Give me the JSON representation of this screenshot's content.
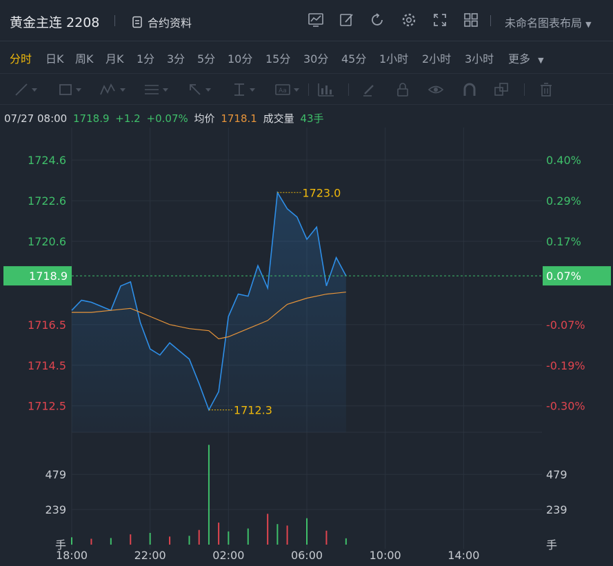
{
  "header": {
    "symbol": "黄金主连 2208",
    "contract_info": "合约资料",
    "layout_name": "未命名图表布局",
    "icons": [
      "chart-type-icon",
      "edit-icon",
      "refresh-icon",
      "settings-icon",
      "fullscreen-icon",
      "grid-layout-icon"
    ]
  },
  "periods": [
    "分时",
    "日K",
    "周K",
    "月K",
    "1分",
    "3分",
    "5分",
    "10分",
    "15分",
    "30分",
    "45分",
    "1小时",
    "2小时",
    "3小时",
    "更多"
  ],
  "active_period": "分时",
  "drawing_tools": [
    "trend-line-icon",
    "rectangle-icon",
    "pattern-icon",
    "fib-icon",
    "arrow-icon",
    "measure-icon",
    "text-icon",
    "indicator-icon",
    "brush-icon",
    "lock-icon",
    "eye-icon",
    "magnet-icon",
    "clone-icon",
    "trash-icon"
  ],
  "quote": {
    "datetime": "07/27 08:00",
    "price": "1718.9",
    "change": "+1.2",
    "change_pct": "+0.07%",
    "avg_label": "均价",
    "avg_price": "1718.1",
    "vol_label": "成交量",
    "volume": "43手"
  },
  "colors": {
    "up": "#3fbf6a",
    "down": "#e0454f",
    "price_line": "#2e8fe8",
    "avg_line": "#e8953a",
    "marker": "#f0b90b",
    "current_price_bg": "#3fbf6a",
    "grid": "#2b333e"
  },
  "chart_data": [
    {
      "type": "line",
      "title": "",
      "x_ticks": [
        "18:00",
        "22:00",
        "02:00",
        "06:00",
        "10:00",
        "14:00"
      ],
      "y_ticks_left": [
        "1724.6",
        "1722.6",
        "1720.6",
        "1716.5",
        "1714.5",
        "1712.5"
      ],
      "y_ticks_right": [
        "0.40%",
        "0.29%",
        "0.17%",
        "-0.07%",
        "-0.19%",
        "-0.30%"
      ],
      "ylim": [
        1711.2,
        1726.2
      ],
      "current_price": "1718.9",
      "current_pct": "0.07%",
      "high_label": "1723.0",
      "low_label": "1712.3",
      "series": [
        {
          "x": [
            "18:00",
            "18:30",
            "19:00",
            "19:30",
            "20:00",
            "20:30",
            "21:00",
            "21:30",
            "22:00",
            "22:30",
            "23:00",
            "23:30",
            "00:00",
            "00:30",
            "01:00",
            "01:30",
            "02:00",
            "02:30",
            "03:00",
            "03:30",
            "04:00",
            "04:30",
            "05:00",
            "05:30",
            "06:00",
            "06:30",
            "07:00",
            "07:30",
            "08:00"
          ],
          "values": [
            1717.2,
            1717.7,
            1717.6,
            1717.4,
            1717.2,
            1718.4,
            1718.6,
            1716.6,
            1715.3,
            1715.0,
            1715.6,
            1715.2,
            1714.8,
            1713.6,
            1712.3,
            1713.2,
            1716.9,
            1718.0,
            1717.9,
            1719.4,
            1718.3,
            1723.0,
            1722.2,
            1721.8,
            1720.7,
            1721.3,
            1718.4,
            1719.8,
            1718.9
          ]
        },
        {
          "x": [
            "18:00",
            "19:00",
            "20:00",
            "21:00",
            "21:30",
            "22:00",
            "23:00",
            "00:00",
            "01:00",
            "01:30",
            "02:00",
            "03:00",
            "04:00",
            "04:30",
            "05:00",
            "06:00",
            "07:00",
            "07:30",
            "08:00"
          ],
          "values": [
            1717.1,
            1717.1,
            1717.2,
            1717.3,
            1717.1,
            1716.9,
            1716.5,
            1716.3,
            1716.2,
            1715.8,
            1715.9,
            1716.3,
            1716.7,
            1717.1,
            1717.5,
            1717.8,
            1718.0,
            1718.05,
            1718.1
          ]
        }
      ]
    },
    {
      "type": "bar",
      "title": "",
      "y_ticks_left": [
        "479",
        "239",
        "手"
      ],
      "y_ticks_right": [
        "479",
        "239",
        "手"
      ],
      "ylim": [
        0,
        719
      ],
      "x": [
        "18:00",
        "19:00",
        "20:00",
        "21:00",
        "22:00",
        "23:00",
        "00:00",
        "00:30",
        "01:00",
        "01:30",
        "02:00",
        "03:00",
        "04:00",
        "04:30",
        "05:00",
        "06:00",
        "07:00",
        "08:00"
      ],
      "values": [
        50,
        40,
        45,
        70,
        80,
        55,
        60,
        100,
        680,
        150,
        90,
        110,
        210,
        140,
        130,
        180,
        95,
        43
      ],
      "colors": [
        "up",
        "down",
        "up",
        "down",
        "up",
        "down",
        "up",
        "down",
        "up",
        "down",
        "up",
        "up",
        "down",
        "up",
        "down",
        "up",
        "down",
        "up"
      ]
    }
  ]
}
